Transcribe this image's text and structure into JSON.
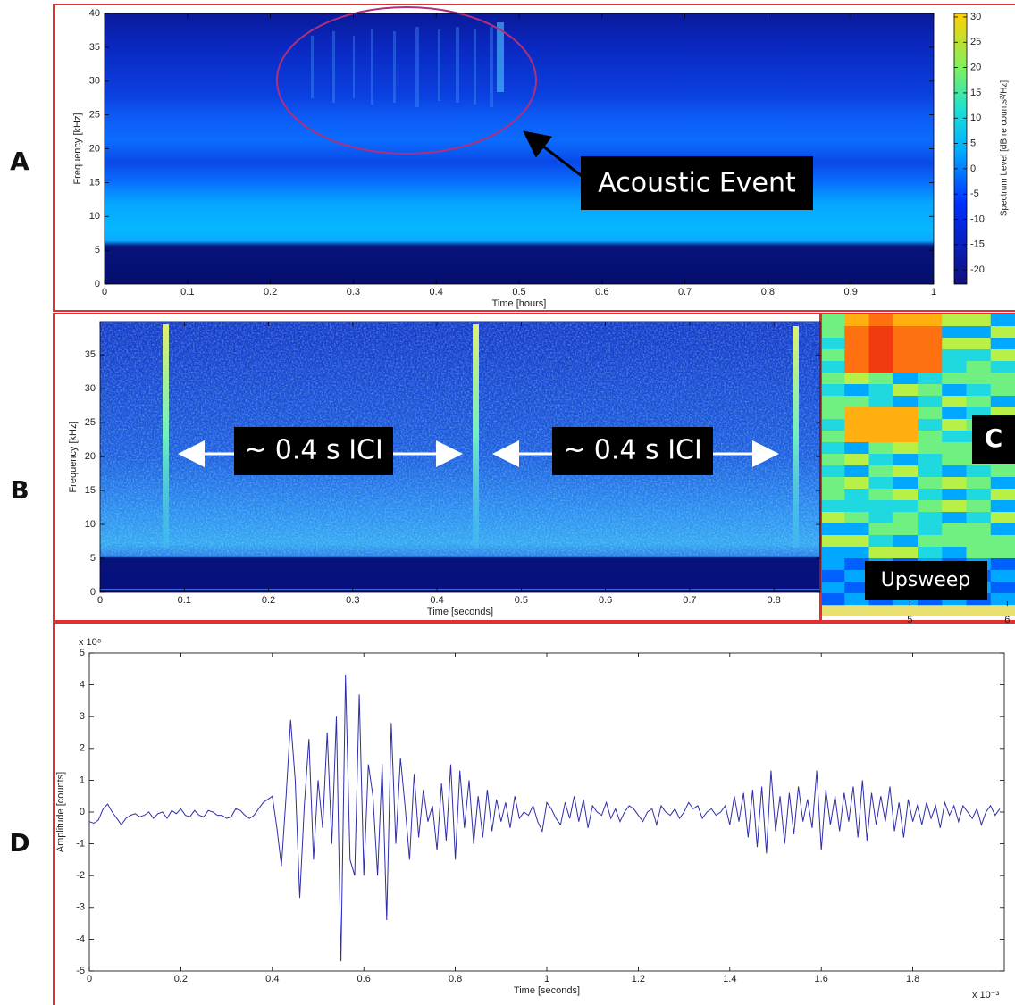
{
  "figure": {
    "panel_labels": [
      "A",
      "B",
      "C",
      "D"
    ]
  },
  "chart_data": [
    {
      "type": "heatmap",
      "xlabel": "Time [hours]",
      "ylabel": "Frequency [kHz]",
      "xlim": [
        0,
        1
      ],
      "xticks": [
        0,
        0.1,
        0.2,
        0.3,
        0.4,
        0.5,
        0.6,
        0.7,
        0.8,
        0.9,
        1
      ],
      "ylim": [
        0,
        40
      ],
      "yticks": [
        0,
        5,
        10,
        15,
        20,
        25,
        30,
        35,
        40
      ],
      "colorbar": {
        "label": "Spectrum Level [dB re counts²/Hz]",
        "lim": [
          -22.8,
          30.7
        ],
        "ticks": [
          -20,
          -15,
          -10,
          -5,
          0,
          5,
          10,
          15,
          20,
          25,
          30
        ]
      },
      "annotations": [
        "Acoustic Event"
      ]
    },
    {
      "type": "heatmap",
      "xlabel": "Time [seconds]",
      "ylabel": "Frequency [kHz]",
      "xlim": [
        0,
        0.855
      ],
      "xticks": [
        0,
        0.1,
        0.2,
        0.3,
        0.4,
        0.5,
        0.6,
        0.7,
        0.8
      ],
      "ylim": [
        0,
        39.9
      ],
      "yticks": [
        0,
        5,
        10,
        15,
        20,
        25,
        30,
        35
      ],
      "annotations": [
        "~ 0.4 s ICI",
        "~ 0.4 s ICI"
      ]
    },
    {
      "type": "heatmap",
      "xlim": [
        4.08,
        6.08
      ],
      "xticks": [
        5,
        6
      ],
      "annotations": [
        "Upsweep"
      ]
    },
    {
      "type": "line",
      "xlabel": "Time [seconds]",
      "ylabel": "Amplitude [counts]",
      "x_multiplier": "x 10⁻³",
      "y_multiplier": "x 10⁸",
      "xlim": [
        0,
        2
      ],
      "xticks": [
        0,
        0.2,
        0.4,
        0.6,
        0.8,
        1,
        1.2,
        1.4,
        1.6,
        1.8
      ],
      "ylim": [
        -5,
        5
      ],
      "yticks": [
        -5,
        -4,
        -3,
        -2,
        -1,
        0,
        1,
        2,
        3,
        4,
        5
      ],
      "color": "#2e2ea8",
      "x": [
        0,
        0.01,
        0.02,
        0.03,
        0.04,
        0.05,
        0.06,
        0.07,
        0.08,
        0.09,
        0.1,
        0.11,
        0.12,
        0.13,
        0.14,
        0.15,
        0.16,
        0.17,
        0.18,
        0.19,
        0.2,
        0.21,
        0.22,
        0.23,
        0.24,
        0.25,
        0.26,
        0.27,
        0.28,
        0.29,
        0.3,
        0.31,
        0.32,
        0.33,
        0.34,
        0.35,
        0.36,
        0.37,
        0.38,
        0.39,
        0.4,
        0.41,
        0.42,
        0.43,
        0.44,
        0.45,
        0.46,
        0.47,
        0.48,
        0.49,
        0.5,
        0.51,
        0.52,
        0.53,
        0.54,
        0.55,
        0.56,
        0.57,
        0.58,
        0.59,
        0.6,
        0.61,
        0.62,
        0.63,
        0.64,
        0.65,
        0.66,
        0.67,
        0.68,
        0.69,
        0.7,
        0.71,
        0.72,
        0.73,
        0.74,
        0.75,
        0.76,
        0.77,
        0.78,
        0.79,
        0.8,
        0.81,
        0.82,
        0.83,
        0.84,
        0.85,
        0.86,
        0.87,
        0.88,
        0.89,
        0.9,
        0.91,
        0.92,
        0.93,
        0.94,
        0.95,
        0.96,
        0.97,
        0.98,
        0.99,
        1,
        1.01,
        1.02,
        1.03,
        1.04,
        1.05,
        1.06,
        1.07,
        1.08,
        1.09,
        1.1,
        1.11,
        1.12,
        1.13,
        1.14,
        1.15,
        1.16,
        1.17,
        1.18,
        1.19,
        1.2,
        1.21,
        1.22,
        1.23,
        1.24,
        1.25,
        1.26,
        1.27,
        1.28,
        1.29,
        1.3,
        1.31,
        1.32,
        1.33,
        1.34,
        1.35,
        1.36,
        1.37,
        1.38,
        1.39,
        1.4,
        1.41,
        1.42,
        1.43,
        1.44,
        1.45,
        1.46,
        1.47,
        1.48,
        1.49,
        1.5,
        1.51,
        1.52,
        1.53,
        1.54,
        1.55,
        1.56,
        1.57,
        1.58,
        1.59,
        1.6,
        1.61,
        1.62,
        1.63,
        1.64,
        1.65,
        1.66,
        1.67,
        1.68,
        1.69,
        1.7,
        1.71,
        1.72,
        1.73,
        1.74,
        1.75,
        1.76,
        1.77,
        1.78,
        1.79,
        1.8,
        1.81,
        1.82,
        1.83,
        1.84,
        1.85,
        1.86,
        1.87,
        1.88,
        1.89,
        1.9,
        1.91,
        1.92,
        1.93,
        1.94,
        1.95,
        1.96,
        1.97,
        1.98,
        1.99
      ],
      "values": [
        -0.3,
        -0.35,
        -0.25,
        0.1,
        0.25,
        0.0,
        -0.2,
        -0.4,
        -0.2,
        -0.1,
        -0.05,
        -0.15,
        -0.1,
        0.0,
        -0.2,
        -0.05,
        0.0,
        -0.2,
        0.05,
        -0.05,
        0.1,
        -0.1,
        -0.15,
        0.05,
        -0.1,
        -0.15,
        0.05,
        0.0,
        -0.1,
        -0.1,
        -0.2,
        -0.15,
        0.1,
        0.05,
        -0.1,
        -0.2,
        -0.1,
        0.1,
        0.3,
        0.4,
        0.5,
        -0.5,
        -1.7,
        0.5,
        2.9,
        1.0,
        -2.7,
        0.2,
        2.3,
        -1.5,
        1.0,
        -0.5,
        2.5,
        -1.0,
        3.0,
        -4.7,
        4.3,
        -1.5,
        -2.0,
        3.7,
        -2.0,
        1.5,
        0.5,
        -2.0,
        1.5,
        -3.4,
        2.8,
        -1.0,
        1.7,
        0.2,
        -1.5,
        1.2,
        -0.8,
        0.7,
        -0.3,
        0.2,
        -1.2,
        0.9,
        -0.9,
        1.5,
        -1.5,
        1.3,
        -0.5,
        1.0,
        -1.0,
        0.5,
        -0.8,
        0.7,
        -0.6,
        0.4,
        -0.3,
        0.3,
        -0.5,
        0.5,
        -0.2,
        0.0,
        -0.1,
        0.2,
        -0.3,
        -0.6,
        0.3,
        0.1,
        -0.2,
        -0.4,
        0.3,
        -0.2,
        0.5,
        -0.3,
        0.4,
        -0.5,
        0.2,
        0.0,
        -0.1,
        0.3,
        -0.2,
        0.1,
        -0.3,
        0.0,
        0.2,
        0.1,
        -0.1,
        -0.3,
        0.0,
        0.1,
        -0.4,
        0.2,
        0.0,
        -0.1,
        0.1,
        -0.2,
        0.0,
        0.3,
        0.1,
        0.2,
        -0.2,
        0.0,
        0.1,
        -0.1,
        0.0,
        0.2,
        -0.4,
        0.5,
        -0.3,
        0.6,
        -0.8,
        0.7,
        -1.1,
        0.8,
        -1.3,
        1.3,
        -0.6,
        0.5,
        -1.0,
        0.6,
        -0.7,
        0.8,
        -0.3,
        0.4,
        -0.5,
        1.3,
        -1.2,
        0.7,
        -0.4,
        0.5,
        -0.6,
        0.6,
        -0.3,
        0.8,
        -0.8,
        1.0,
        -0.9,
        0.6,
        -0.4,
        0.5,
        -0.3,
        0.8,
        -0.6,
        0.3,
        -0.8,
        0.4,
        -0.3,
        0.2,
        -0.4,
        0.3,
        -0.2,
        0.2,
        -0.5,
        0.3,
        -0.1,
        0.2,
        -0.3,
        0.2,
        0.0,
        -0.2,
        0.1,
        -0.4,
        0.0,
        0.2,
        -0.1,
        0.1
      ]
    }
  ]
}
